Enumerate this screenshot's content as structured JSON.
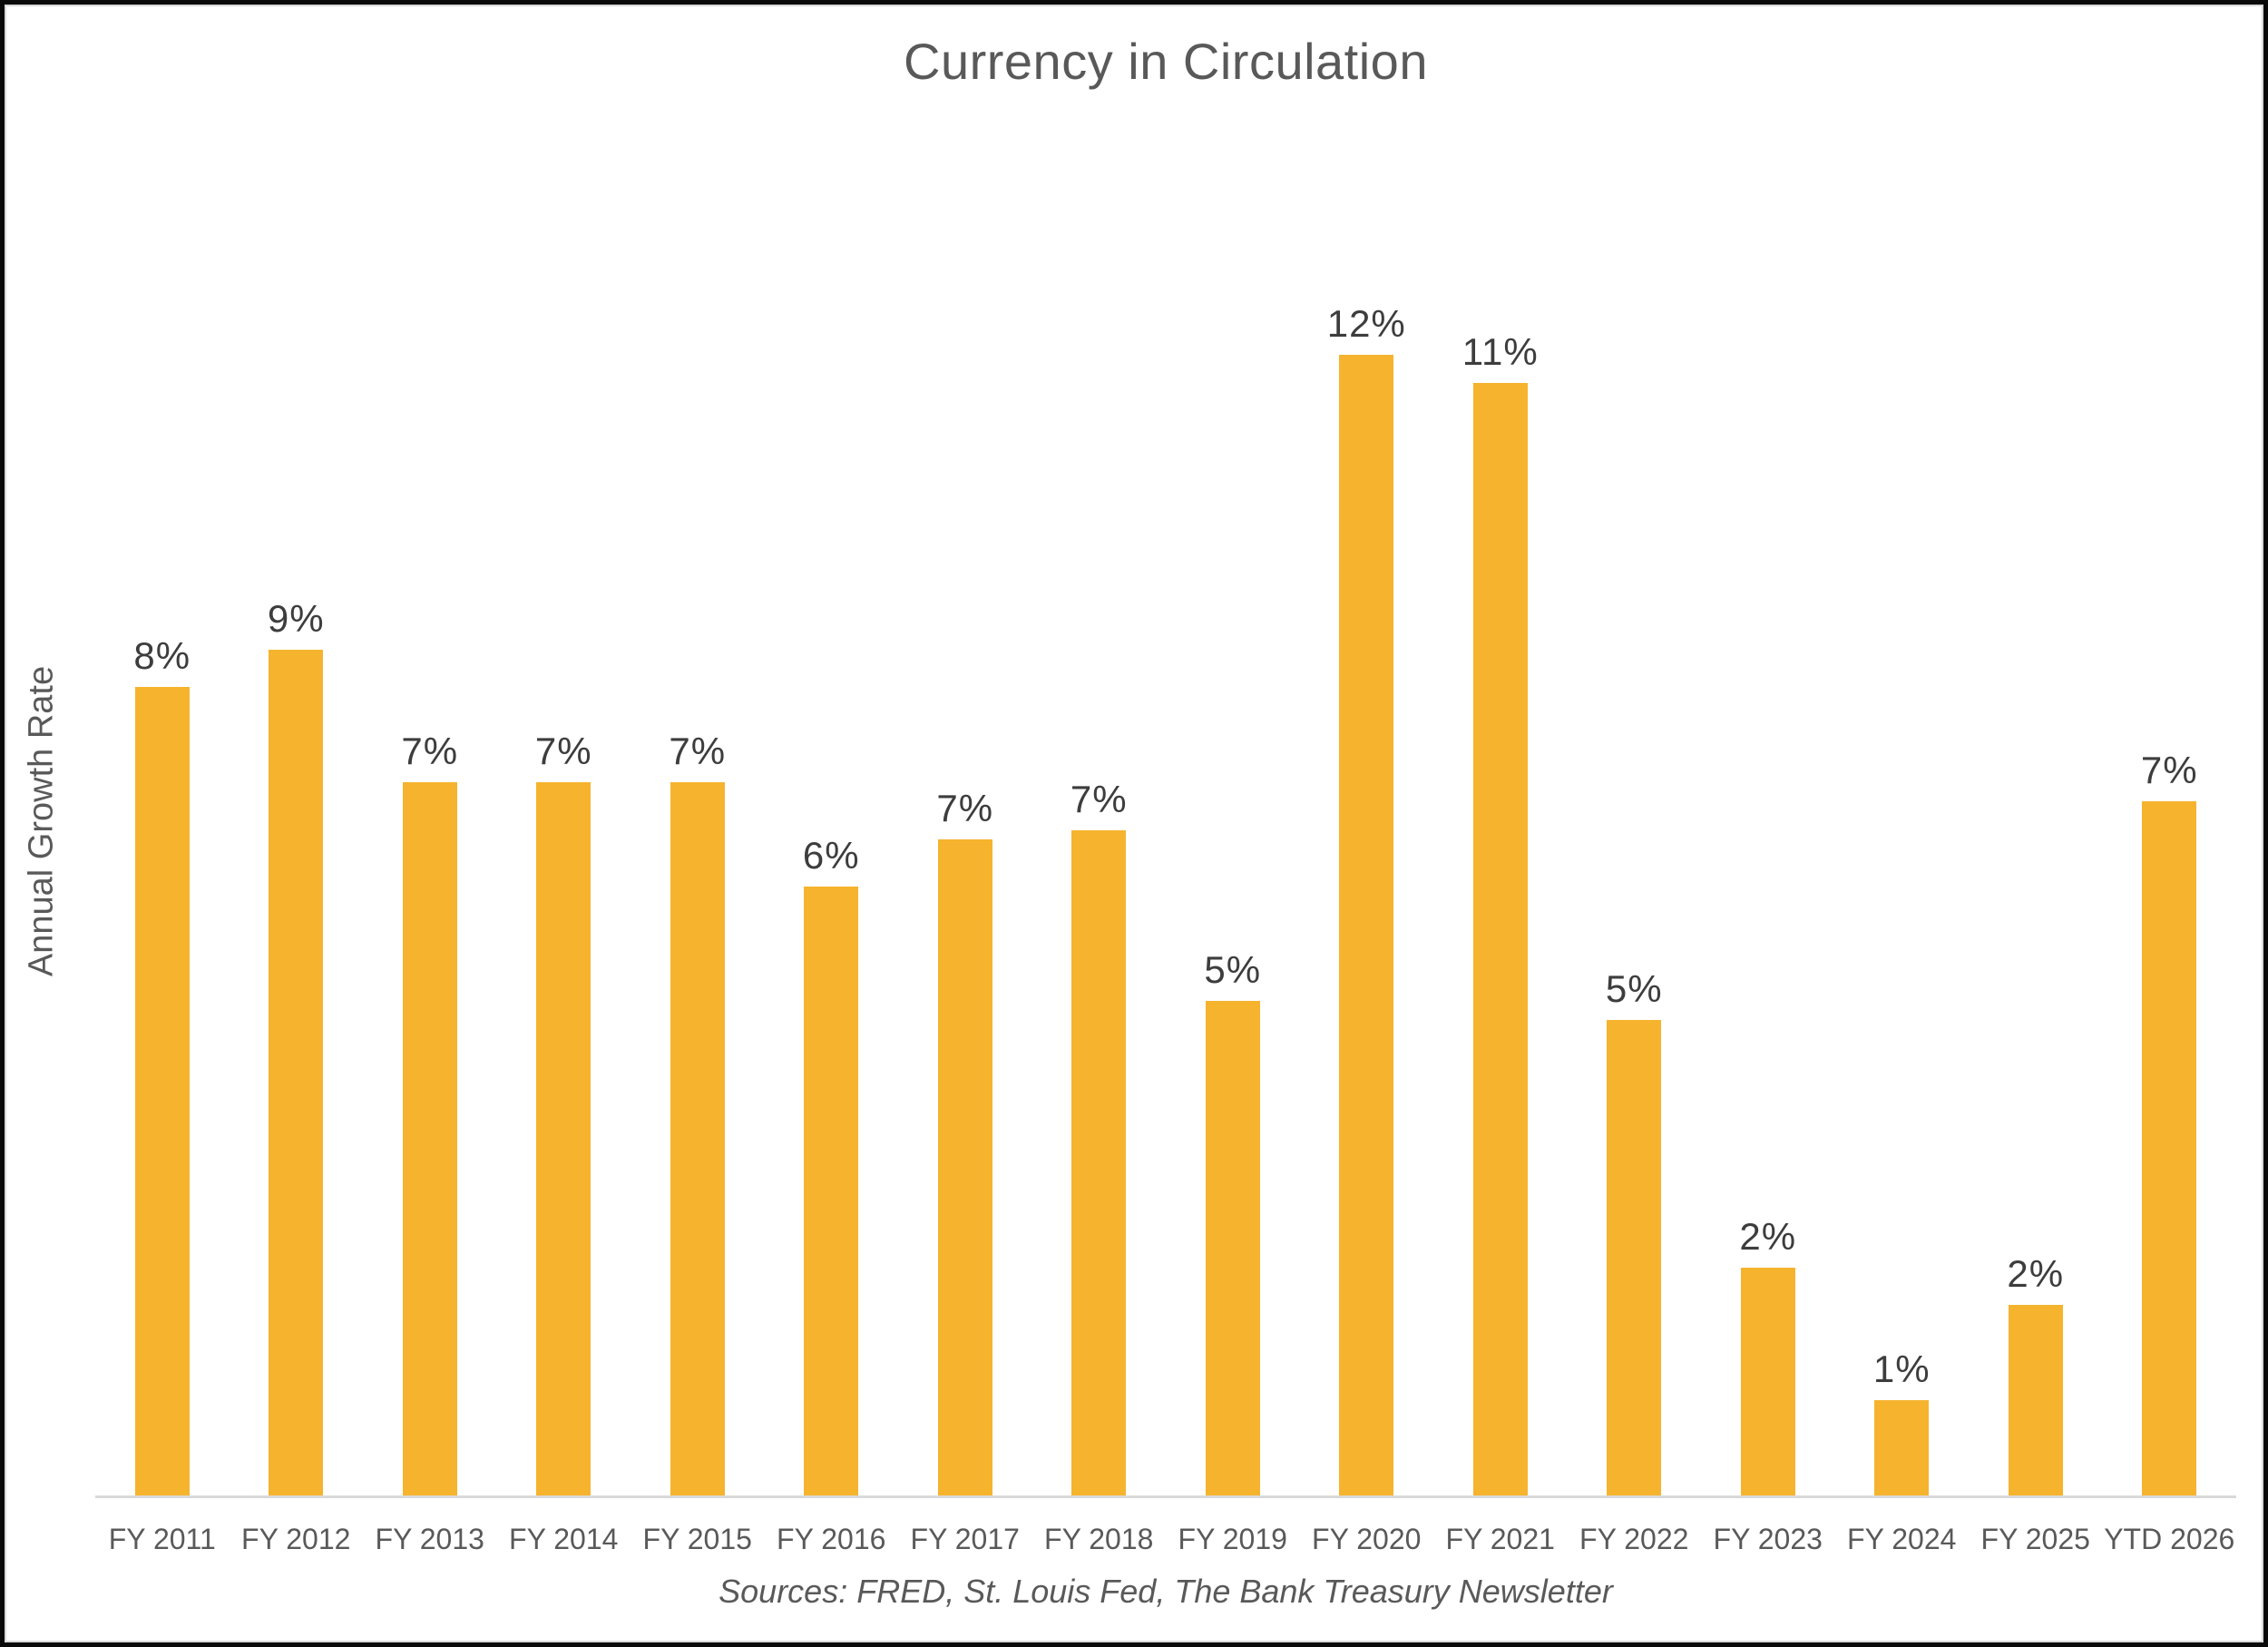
{
  "chart_data": {
    "type": "bar",
    "title": "Currency in Circulation",
    "ylabel": "Annual Growth Rate",
    "xlabel": "",
    "categories": [
      "FY 2011",
      "FY 2012",
      "FY 2013",
      "FY 2014",
      "FY 2015",
      "FY 2016",
      "FY 2017",
      "FY 2018",
      "FY 2019",
      "FY 2020",
      "FY 2021",
      "FY 2022",
      "FY 2023",
      "FY 2024",
      "FY 2025",
      "YTD 2026"
    ],
    "values": [
      8,
      9,
      7,
      7,
      7,
      6,
      7,
      7,
      5,
      12,
      11,
      5,
      2,
      1,
      2,
      7
    ],
    "value_labels": [
      "8%",
      "9%",
      "7%",
      "7%",
      "7%",
      "6%",
      "7%",
      "7%",
      "5%",
      "12%",
      "11%",
      "5%",
      "2%",
      "1%",
      "2%",
      "7%"
    ],
    "values_est_from_bar_heights": [
      8.5,
      8.9,
      7.5,
      7.5,
      7.5,
      6.4,
      6.9,
      7.0,
      5.2,
      12.0,
      11.7,
      5.0,
      2.4,
      1.0,
      2.0,
      7.3
    ],
    "ylim": [
      0,
      13
    ],
    "grid": false,
    "legend_position": "none",
    "bar_color": "#F5B32E",
    "axis_line_color": "#d9d9d9",
    "source_note": "Sources: FRED, St. Louis Fed, The Bank Treasury Newsletter"
  }
}
